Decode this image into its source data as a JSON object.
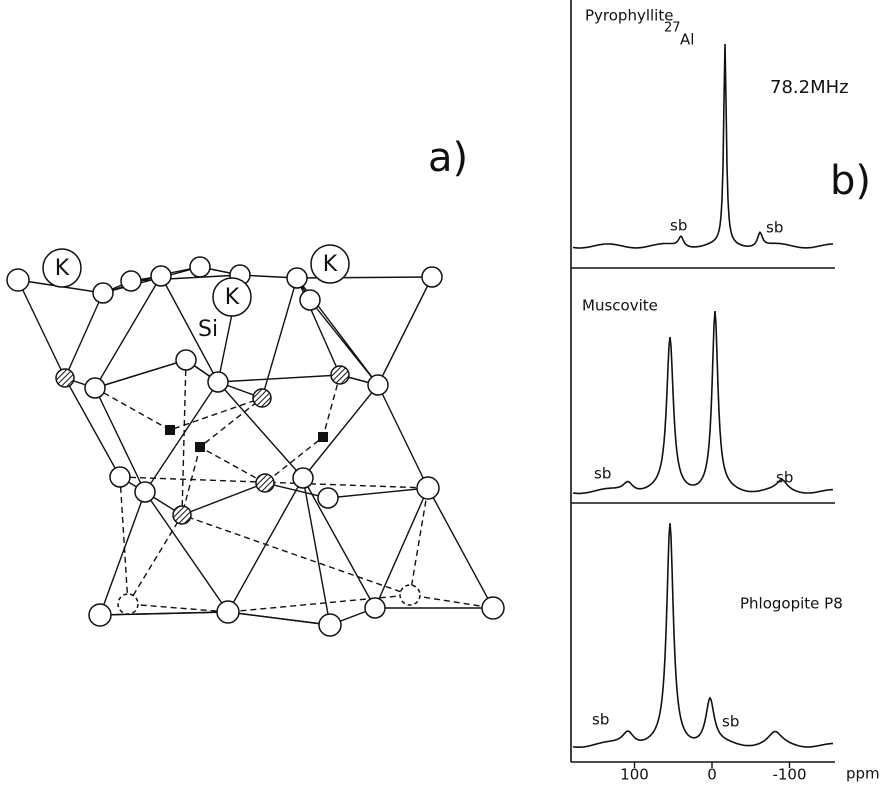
{
  "panel_a": {
    "label": "a)",
    "atoms": {
      "k": [
        "K",
        "K",
        "K"
      ],
      "si": "Si"
    }
  },
  "panel_b": {
    "label": "b)",
    "nucleus": {
      "mass": "27",
      "element": "Al"
    },
    "frequency": "78.2MHz",
    "spectra": [
      {
        "name": "Pyrophyllite",
        "sidebands": [
          "sb",
          "sb"
        ]
      },
      {
        "name": "Muscovite",
        "sidebands": [
          "sb",
          "sb"
        ]
      },
      {
        "name": "Phlogopite P8",
        "sidebands": [
          "sb",
          "sb"
        ]
      }
    ],
    "axis": {
      "ticks": [
        100,
        0,
        -100
      ],
      "unit": "ppm"
    }
  }
}
